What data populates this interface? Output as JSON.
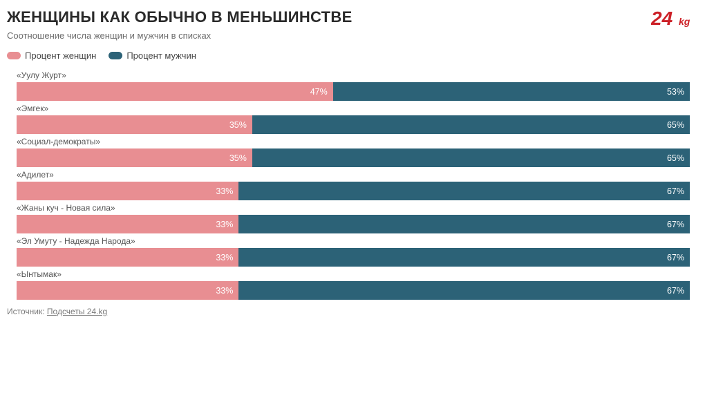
{
  "colors": {
    "women": "#e88e92",
    "men": "#2c6277",
    "title": "#2a2a2a",
    "subtext": "#6b6b6b",
    "label": "#555555",
    "barText": "#ffffff",
    "footer": "#7a7a7a",
    "logoRed": "#cc2027"
  },
  "title": "ЖЕНЩИНЫ КАК ОБЫЧНО В МЕНЬШИНСТВЕ",
  "subtitle": "Соотношение числа женщин и мужчин в списках",
  "legend": {
    "women": "Процент женщин",
    "men": "Процент мужчин"
  },
  "logo": {
    "big": "24",
    "small": "kg"
  },
  "chart": {
    "type": "stacked-bar-horizontal",
    "trackWidthPx": 974,
    "barHeightPx": 27,
    "rows": [
      {
        "label": "«Уулу Журт»",
        "women": 47,
        "men": 53
      },
      {
        "label": "«Эмгек»",
        "women": 35,
        "men": 65
      },
      {
        "label": "«Социал-демократы»",
        "women": 35,
        "men": 65
      },
      {
        "label": "«Адилет»",
        "women": 33,
        "men": 67
      },
      {
        "label": "«Жаны куч - Новая сила»",
        "women": 33,
        "men": 67
      },
      {
        "label": "«Эл Умуту - Надежда Народа»",
        "women": 33,
        "men": 67
      },
      {
        "label": "«Ынтымак»",
        "women": 33,
        "men": 67
      }
    ]
  },
  "footer": {
    "prefix": "Источник: ",
    "link": "Подсчеты 24.kg"
  }
}
